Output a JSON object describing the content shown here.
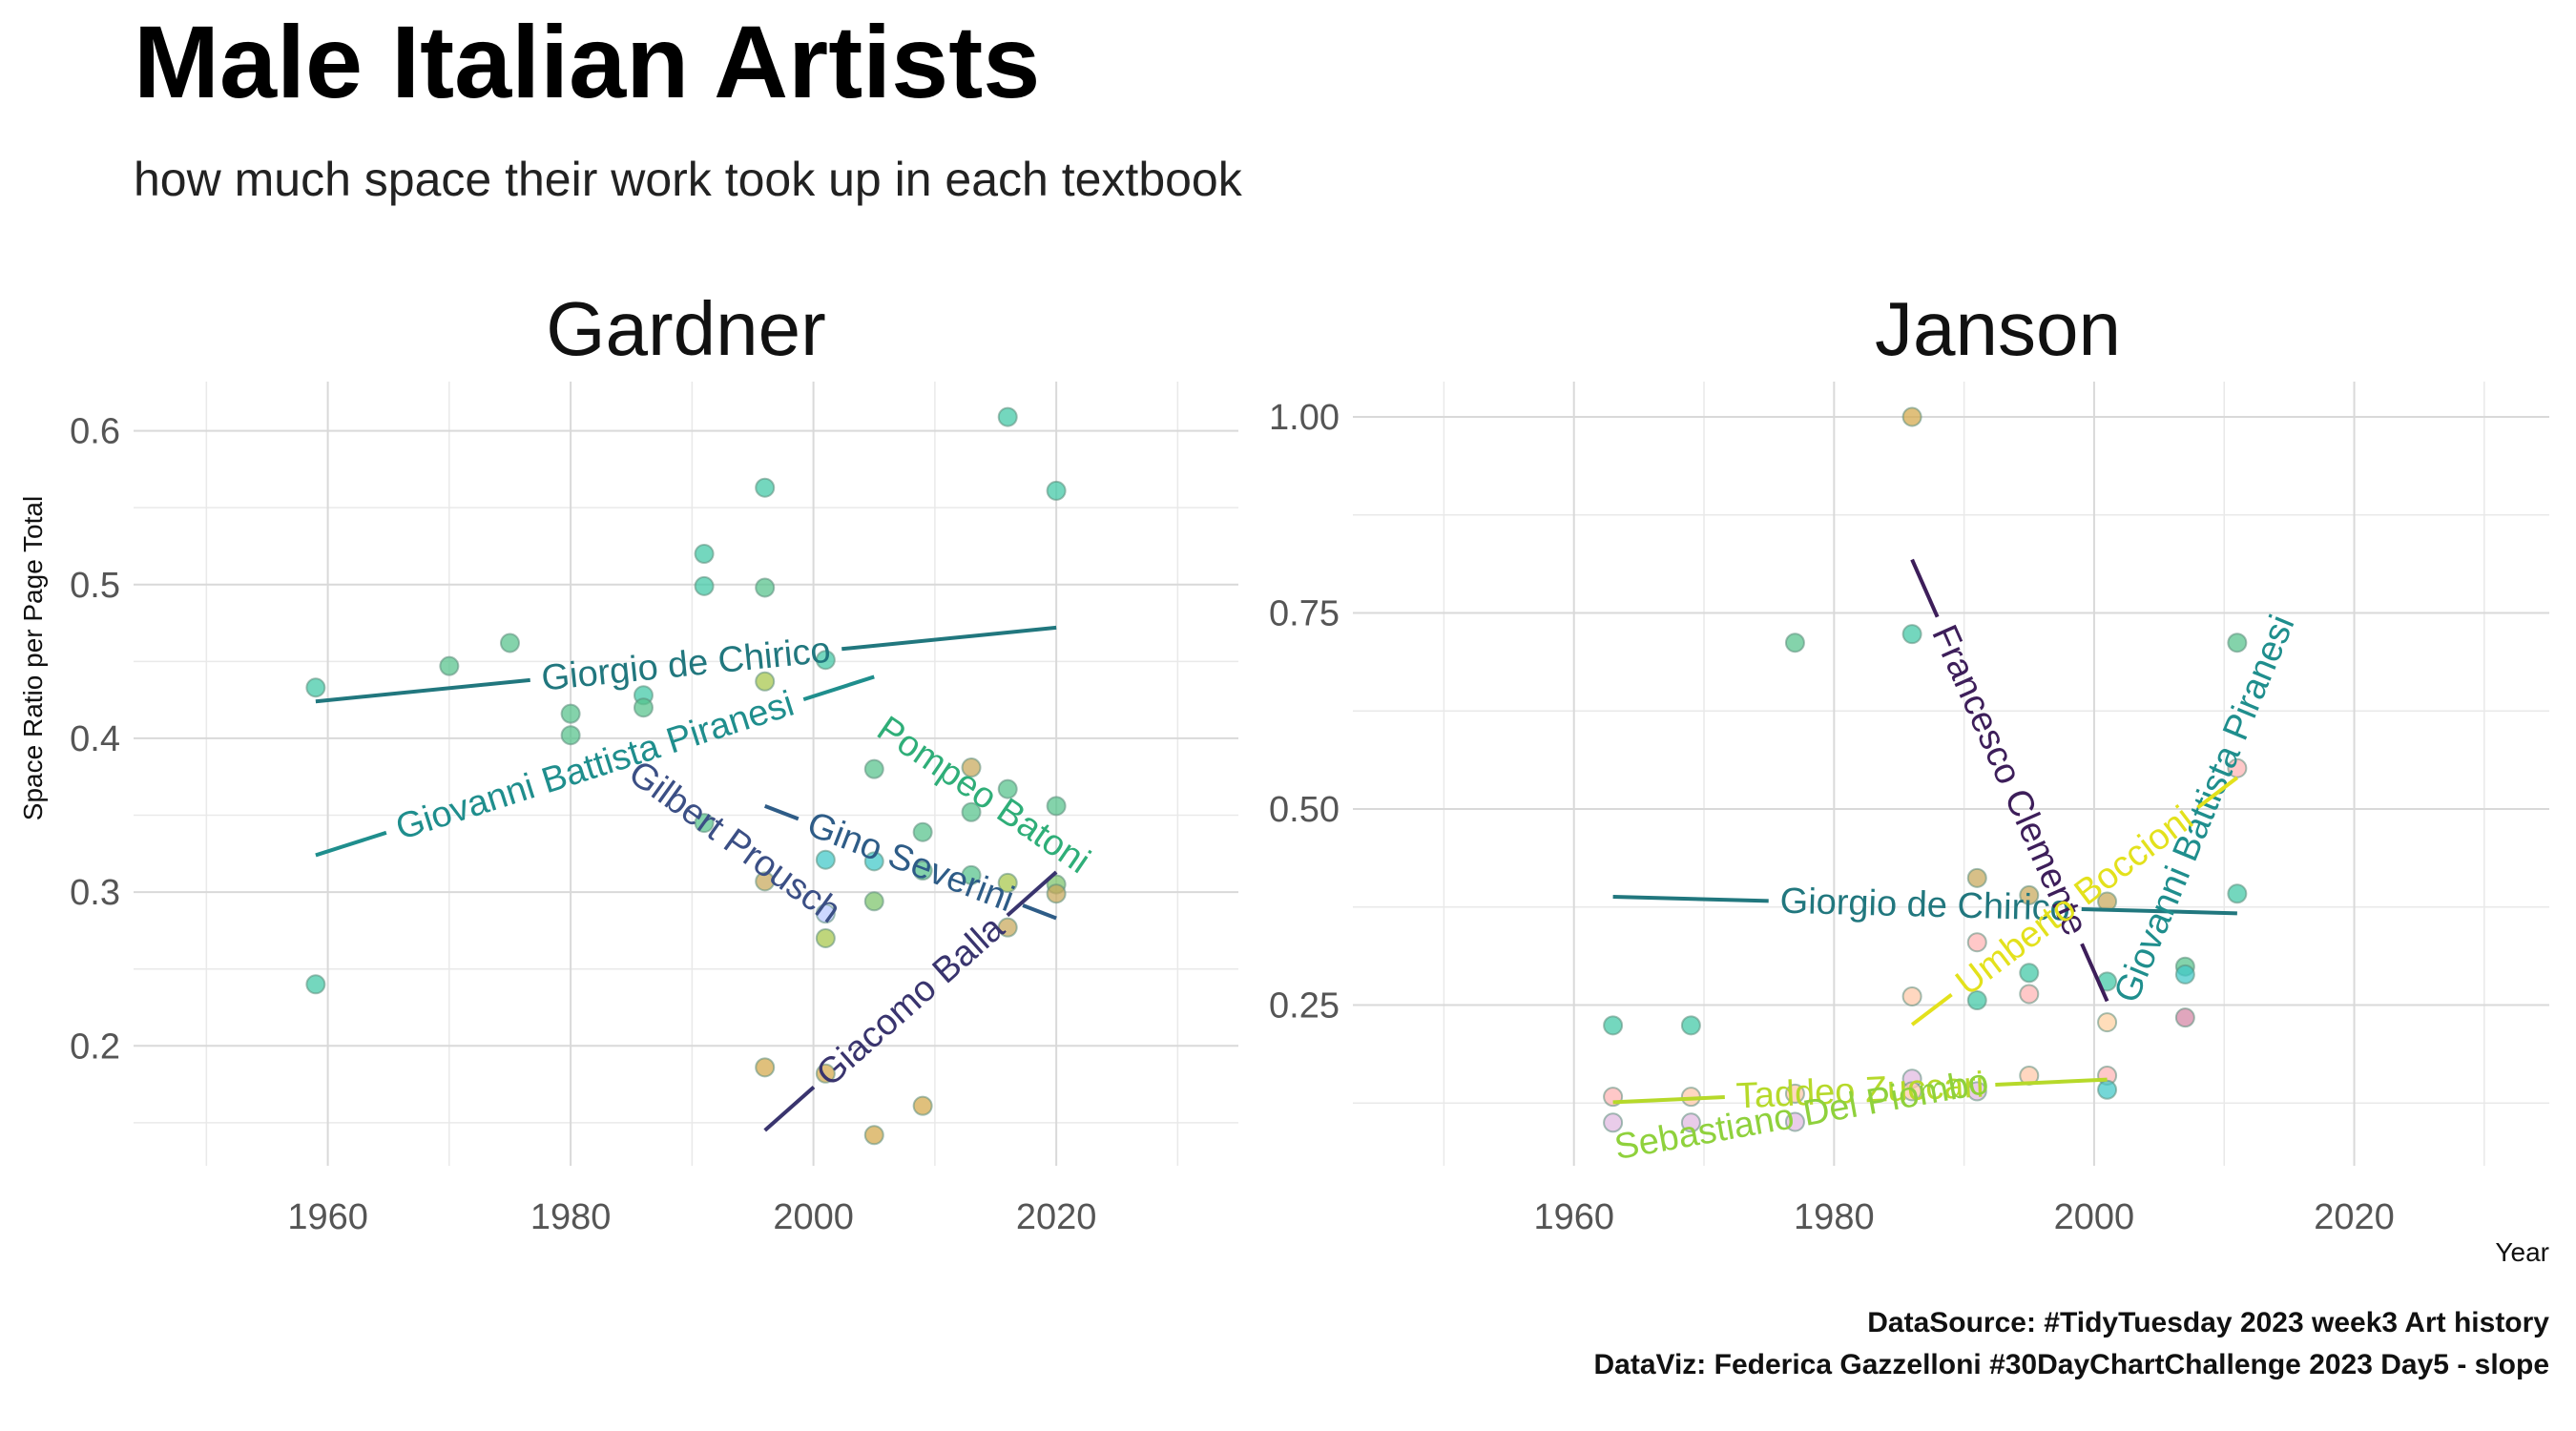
{
  "title": "Male Italian Artists",
  "subtitle": "how much space their work took up in each textbook",
  "caption_line1": "DataSource: #TidyTuesday 2023 week3 Art history",
  "caption_line2": "DataViz: Federica Gazzelloni #30DayChartChallenge 2023 Day5 - slope",
  "chart_data": {
    "type": "scatter",
    "ylabel": "Space Ratio per Page Total",
    "xlabel": "Year",
    "panels": [
      {
        "name": "Gardner",
        "xlim": [
          1944,
          2035
        ],
        "ylim": [
          0.122,
          0.632
        ],
        "x_ticks": [
          1960,
          1980,
          2000,
          2020
        ],
        "y_ticks": [
          0.2,
          0.3,
          0.4,
          0.5,
          0.6
        ],
        "y_tick_labels": [
          "0.2",
          "0.3",
          "0.4",
          "0.5",
          "0.6"
        ],
        "points": [
          {
            "x": 1959,
            "y": 0.433,
            "color": "#3fc7a5"
          },
          {
            "x": 1959,
            "y": 0.24,
            "color": "#3fc7a5"
          },
          {
            "x": 1970,
            "y": 0.447,
            "color": "#55c28a"
          },
          {
            "x": 1975,
            "y": 0.462,
            "color": "#55c28a"
          },
          {
            "x": 1980,
            "y": 0.416,
            "color": "#55c28a"
          },
          {
            "x": 1980,
            "y": 0.402,
            "color": "#55c28a"
          },
          {
            "x": 1986,
            "y": 0.428,
            "color": "#3fc7a5"
          },
          {
            "x": 1986,
            "y": 0.42,
            "color": "#55c28a"
          },
          {
            "x": 1991,
            "y": 0.52,
            "color": "#3fc7a5"
          },
          {
            "x": 1991,
            "y": 0.499,
            "color": "#3fc7a5"
          },
          {
            "x": 1991,
            "y": 0.345,
            "color": "#55c28a"
          },
          {
            "x": 1996,
            "y": 0.563,
            "color": "#3fc7a5"
          },
          {
            "x": 1996,
            "y": 0.498,
            "color": "#55c28a"
          },
          {
            "x": 1996,
            "y": 0.437,
            "color": "#a6c64a"
          },
          {
            "x": 1996,
            "y": 0.307,
            "color": "#c8a85a"
          },
          {
            "x": 1996,
            "y": 0.186,
            "color": "#d4a84a"
          },
          {
            "x": 2001,
            "y": 0.451,
            "color": "#3fc7a5"
          },
          {
            "x": 2001,
            "y": 0.321,
            "color": "#3fc7c7"
          },
          {
            "x": 2001,
            "y": 0.286,
            "color": "#b9c8ff"
          },
          {
            "x": 2001,
            "y": 0.27,
            "color": "#a6c64a"
          },
          {
            "x": 2001,
            "y": 0.182,
            "color": "#d4a84a"
          },
          {
            "x": 2005,
            "y": 0.38,
            "color": "#55c28a"
          },
          {
            "x": 2005,
            "y": 0.32,
            "color": "#3fc7c7"
          },
          {
            "x": 2005,
            "y": 0.294,
            "color": "#7bc46a"
          },
          {
            "x": 2005,
            "y": 0.142,
            "color": "#d4a84a"
          },
          {
            "x": 2009,
            "y": 0.339,
            "color": "#55c28a"
          },
          {
            "x": 2009,
            "y": 0.314,
            "color": "#55c28a"
          },
          {
            "x": 2009,
            "y": 0.161,
            "color": "#d4a84a"
          },
          {
            "x": 2013,
            "y": 0.381,
            "color": "#c8a85a"
          },
          {
            "x": 2013,
            "y": 0.352,
            "color": "#55c28a"
          },
          {
            "x": 2013,
            "y": 0.311,
            "color": "#55c28a"
          },
          {
            "x": 2016,
            "y": 0.609,
            "color": "#3fc7a5"
          },
          {
            "x": 2016,
            "y": 0.367,
            "color": "#55c28a"
          },
          {
            "x": 2016,
            "y": 0.306,
            "color": "#a6c64a"
          },
          {
            "x": 2016,
            "y": 0.277,
            "color": "#c8a85a"
          },
          {
            "x": 2020,
            "y": 0.561,
            "color": "#3fc7a5"
          },
          {
            "x": 2020,
            "y": 0.356,
            "color": "#55c28a"
          },
          {
            "x": 2020,
            "y": 0.305,
            "color": "#7bc46a"
          },
          {
            "x": 2020,
            "y": 0.299,
            "color": "#c8a85a"
          }
        ],
        "lines": [
          {
            "label": "Giorgio de Chirico",
            "x1": 1959,
            "y1": 0.424,
            "x2": 2020,
            "y2": 0.472,
            "color": "#21777e"
          },
          {
            "label": "Giovanni Battista Piranesi",
            "x1": 1959,
            "y1": 0.324,
            "x2": 2005,
            "y2": 0.44,
            "color": "#1f8e8d"
          },
          {
            "label": "Pompeo Batoni",
            "x1": 2009,
            "y1": 0.39,
            "x2": 2019,
            "y2": 0.336,
            "color": "#2fae78",
            "text_only": true
          },
          {
            "label": "Gilbert Prousch",
            "x1": 1986,
            "y1": 0.375,
            "x2": 2001,
            "y2": 0.29,
            "color": "#3b4f85",
            "text_only": true
          },
          {
            "label": "Gino Severini",
            "x1": 1996,
            "y1": 0.356,
            "x2": 2020,
            "y2": 0.283,
            "color": "#2e5c87"
          },
          {
            "label": "Giacomo Balla",
            "x1": 1996,
            "y1": 0.145,
            "x2": 2020,
            "y2": 0.313,
            "color": "#39346e"
          }
        ]
      },
      {
        "name": "Janson",
        "xlim": [
          1943,
          2035
        ],
        "ylim": [
          0.045,
          1.045
        ],
        "x_ticks": [
          1960,
          1980,
          2000,
          2020
        ],
        "y_ticks": [
          0.25,
          0.5,
          0.75,
          1.0
        ],
        "y_tick_labels": [
          "0.25",
          "0.50",
          "0.75",
          "1.00"
        ],
        "points": [
          {
            "x": 1963,
            "y": 0.224,
            "color": "#3fc7a5"
          },
          {
            "x": 1963,
            "y": 0.133,
            "color": "#ffb3b3"
          },
          {
            "x": 1963,
            "y": 0.1,
            "color": "#e0b8e0"
          },
          {
            "x": 1969,
            "y": 0.224,
            "color": "#3fc7a5"
          },
          {
            "x": 1969,
            "y": 0.133,
            "color": "#ffc8a8"
          },
          {
            "x": 1969,
            "y": 0.1,
            "color": "#e0b8e0"
          },
          {
            "x": 1977,
            "y": 0.712,
            "color": "#55c28a"
          },
          {
            "x": 1977,
            "y": 0.137,
            "color": "#ffc8a8"
          },
          {
            "x": 1977,
            "y": 0.101,
            "color": "#e0b8e0"
          },
          {
            "x": 1986,
            "y": 1.0,
            "color": "#d4a84a"
          },
          {
            "x": 1986,
            "y": 0.723,
            "color": "#3fc7a5"
          },
          {
            "x": 1986,
            "y": 0.261,
            "color": "#ffc8a8"
          },
          {
            "x": 1986,
            "y": 0.156,
            "color": "#e0b8e0"
          },
          {
            "x": 1986,
            "y": 0.14,
            "color": "#ffc8a8"
          },
          {
            "x": 1991,
            "y": 0.412,
            "color": "#c8a85a"
          },
          {
            "x": 1991,
            "y": 0.33,
            "color": "#ffb3b3"
          },
          {
            "x": 1991,
            "y": 0.256,
            "color": "#3fc7a5"
          },
          {
            "x": 1991,
            "y": 0.14,
            "color": "#e0b8e0"
          },
          {
            "x": 1995,
            "y": 0.39,
            "color": "#c8a85a"
          },
          {
            "x": 1995,
            "y": 0.291,
            "color": "#3fc7a5"
          },
          {
            "x": 1995,
            "y": 0.264,
            "color": "#ffb3b3"
          },
          {
            "x": 1995,
            "y": 0.16,
            "color": "#ffc8a8"
          },
          {
            "x": 2001,
            "y": 0.382,
            "color": "#c8a85a"
          },
          {
            "x": 2001,
            "y": 0.28,
            "color": "#3fc7a5"
          },
          {
            "x": 2001,
            "y": 0.228,
            "color": "#ffd0a0"
          },
          {
            "x": 2001,
            "y": 0.16,
            "color": "#ffb3b3"
          },
          {
            "x": 2001,
            "y": 0.142,
            "color": "#3fc7c7"
          },
          {
            "x": 2007,
            "y": 0.299,
            "color": "#55c28a"
          },
          {
            "x": 2007,
            "y": 0.289,
            "color": "#3fc7c7"
          },
          {
            "x": 2007,
            "y": 0.234,
            "color": "#d484a4"
          },
          {
            "x": 2011,
            "y": 0.712,
            "color": "#55c28a"
          },
          {
            "x": 2011,
            "y": 0.552,
            "color": "#ffb3b3"
          },
          {
            "x": 2011,
            "y": 0.392,
            "color": "#3fc7a5"
          }
        ],
        "lines": [
          {
            "label": "Giorgio de Chirico",
            "x1": 1963,
            "y1": 0.388,
            "x2": 2011,
            "y2": 0.367,
            "color": "#21777e"
          },
          {
            "label": "Francesco Clemente",
            "x1": 1986,
            "y1": 0.818,
            "x2": 2001,
            "y2": 0.255,
            "color": "#3d1e5a"
          },
          {
            "label": "Giovanni Battista Piranesi",
            "x1": 2004,
            "y1": 0.32,
            "x2": 2013,
            "y2": 0.68,
            "color": "#1f8e8d",
            "text_only": true
          },
          {
            "label": "Umberto Boccioni",
            "x1": 1986,
            "y1": 0.225,
            "x2": 2011,
            "y2": 0.54,
            "color": "#e3e11c"
          },
          {
            "label": "Taddeo Zuccari",
            "x1": 1963,
            "y1": 0.126,
            "x2": 2001,
            "y2": 0.155,
            "color": "#b6d92a"
          },
          {
            "label": "Sebastiano Del Piombo",
            "x1": 1964,
            "y1": 0.07,
            "x2": 1991,
            "y2": 0.15,
            "color": "#8fd13c",
            "text_only": true
          }
        ]
      }
    ]
  }
}
